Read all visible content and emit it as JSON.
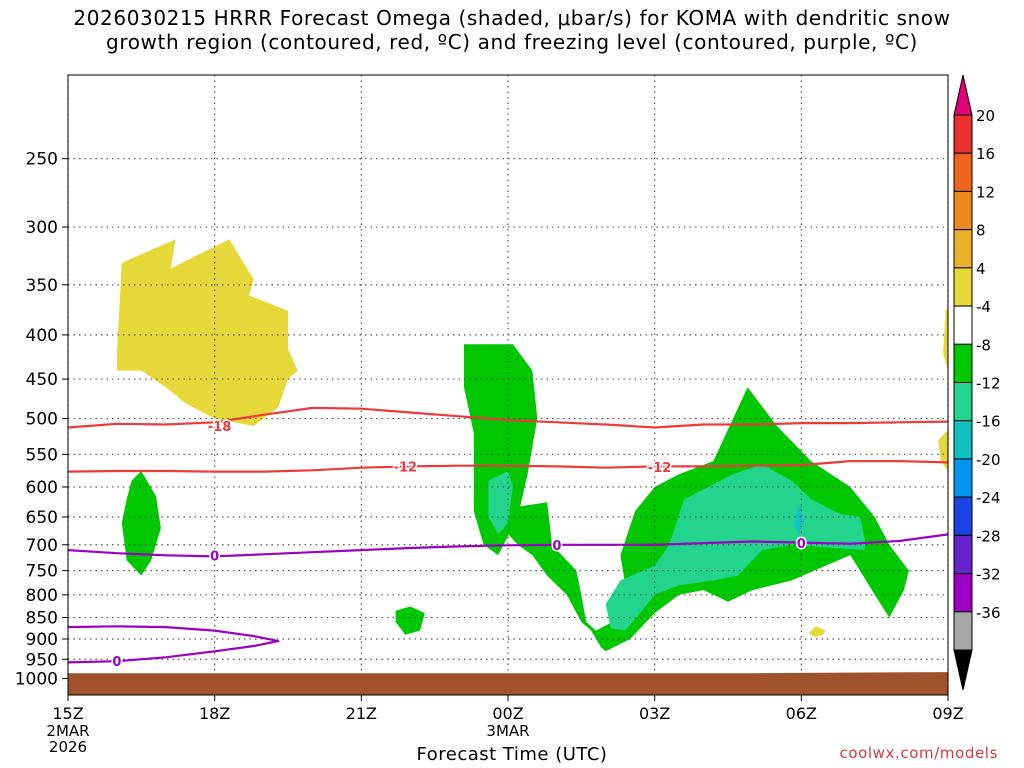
{
  "title_line1": "2026030215 HRRR Forecast Omega (shaded, μbar/s) for KOMA with dendritic snow",
  "title_line2": "growth region (contoured, red, ºC) and freezing level (contoured, purple, ºC)",
  "credit": "coolwx.com/models",
  "chart_data": {
    "type": "contour-time-height",
    "xlabel": "Forecast Time (UTC)",
    "ylabel": "",
    "x_ticks": [
      {
        "hour": 0,
        "label": "15Z",
        "sub1": "2MAR",
        "sub2": "2026"
      },
      {
        "hour": 3,
        "label": "18Z"
      },
      {
        "hour": 6,
        "label": "21Z"
      },
      {
        "hour": 9,
        "label": "00Z",
        "sub1": "3MAR"
      },
      {
        "hour": 12,
        "label": "03Z"
      },
      {
        "hour": 15,
        "label": "06Z"
      },
      {
        "hour": 18,
        "label": "09Z"
      }
    ],
    "y_ticks": [
      {
        "p": 250,
        "label": "250"
      },
      {
        "p": 300,
        "label": "300"
      },
      {
        "p": 350,
        "label": "350"
      },
      {
        "p": 400,
        "label": "400"
      },
      {
        "p": 450,
        "label": "450"
      },
      {
        "p": 500,
        "label": "500"
      },
      {
        "p": 550,
        "label": "550"
      },
      {
        "p": 600,
        "label": "600"
      },
      {
        "p": 650,
        "label": "650"
      },
      {
        "p": 700,
        "label": "700"
      },
      {
        "p": 750,
        "label": "750"
      },
      {
        "p": 800,
        "label": "800"
      },
      {
        "p": 850,
        "label": "850"
      },
      {
        "p": 900,
        "label": "900"
      },
      {
        "p": 950,
        "label": "950"
      },
      {
        "p": 1000,
        "label": "1000"
      }
    ],
    "xlim_hours": [
      0,
      18
    ],
    "ylim_hpa": [
      1045,
      200
    ],
    "grid": true,
    "colorbar": {
      "levels": [
        20,
        16,
        12,
        8,
        4,
        -4,
        -8,
        -12,
        -16,
        -20,
        -24,
        -28,
        -32,
        -36
      ],
      "colors": [
        "#e2007a",
        "#ec3030",
        "#f0651e",
        "#ec8a1e",
        "#e8b028",
        "#e6d838",
        "#ffffff",
        "#00c800",
        "#22d48c",
        "#12c2c2",
        "#0096ee",
        "#1a44e6",
        "#6622cc",
        "#9b00c3",
        "#a8a8a8",
        "#000000"
      ]
    },
    "ground_color": "#a0522d",
    "omega_regions": [
      {
        "value": "4 to 8",
        "color": "#e6d838",
        "points": [
          [
            1.1,
            330
          ],
          [
            2.2,
            310
          ],
          [
            2.1,
            335
          ],
          [
            3.3,
            310
          ],
          [
            3.8,
            345
          ],
          [
            3.7,
            360
          ],
          [
            4.5,
            375
          ],
          [
            4.5,
            415
          ],
          [
            4.7,
            440
          ],
          [
            4.5,
            450
          ],
          [
            4.3,
            485
          ],
          [
            3.8,
            510
          ],
          [
            3.0,
            500
          ],
          [
            2.4,
            480
          ],
          [
            2.0,
            460
          ],
          [
            1.5,
            440
          ],
          [
            1.0,
            440
          ],
          [
            1.0,
            420
          ]
        ]
      },
      {
        "value": "4 to 8",
        "color": "#e6d838",
        "points": [
          [
            17.95,
            375
          ],
          [
            18,
            370
          ],
          [
            18,
            440
          ],
          [
            17.9,
            420
          ]
        ]
      },
      {
        "value": "4 to 8",
        "color": "#e6d838",
        "points": [
          [
            18,
            515
          ],
          [
            17.8,
            530
          ],
          [
            17.85,
            560
          ],
          [
            18,
            575
          ]
        ]
      },
      {
        "value": "4 to 8",
        "color": "#e6d838",
        "points": [
          [
            15.3,
            870
          ],
          [
            15.5,
            880
          ],
          [
            15.45,
            890
          ],
          [
            15.25,
            895
          ],
          [
            15.15,
            885
          ]
        ]
      },
      {
        "value": "-4 to -8",
        "color": "#00c800",
        "points": [
          [
            1.3,
            590
          ],
          [
            1.5,
            575
          ],
          [
            1.8,
            615
          ],
          [
            1.9,
            670
          ],
          [
            1.7,
            730
          ],
          [
            1.5,
            760
          ],
          [
            1.2,
            730
          ],
          [
            1.1,
            660
          ],
          [
            1.2,
            620
          ]
        ]
      },
      {
        "value": "-4 to -8",
        "color": "#00c800",
        "points": [
          [
            6.7,
            835
          ],
          [
            7.0,
            825
          ],
          [
            7.3,
            840
          ],
          [
            7.2,
            880
          ],
          [
            6.9,
            890
          ],
          [
            6.7,
            860
          ]
        ]
      },
      {
        "value": "-4 to -8",
        "color": "#00c800",
        "points": [
          [
            8.1,
            405
          ],
          [
            8.1,
            410
          ],
          [
            9.1,
            410
          ],
          [
            9.5,
            440
          ],
          [
            9.6,
            500
          ],
          [
            9.4,
            580
          ],
          [
            9.2,
            650
          ],
          [
            8.8,
            720
          ],
          [
            8.5,
            700
          ],
          [
            8.3,
            640
          ],
          [
            8.3,
            520
          ],
          [
            8.1,
            460
          ]
        ]
      },
      {
        "value": "-4 to -8",
        "color": "#00c800",
        "points": [
          [
            8.3,
            500
          ],
          [
            8.6,
            510
          ],
          [
            8.6,
            520
          ],
          [
            8.3,
            520
          ]
        ]
      },
      {
        "value": "-4 to -8",
        "color": "#00c800",
        "points": [
          [
            9.0,
            635
          ],
          [
            9.8,
            625
          ],
          [
            9.85,
            660
          ],
          [
            9.9,
            700
          ],
          [
            10.4,
            750
          ],
          [
            10.5,
            800
          ],
          [
            10.6,
            860
          ],
          [
            10.8,
            880
          ],
          [
            11.3,
            850
          ],
          [
            11.4,
            780
          ],
          [
            11.3,
            720
          ],
          [
            11.6,
            640
          ],
          [
            12.0,
            600
          ],
          [
            12.5,
            580
          ],
          [
            13.2,
            560
          ],
          [
            13.9,
            460
          ],
          [
            14.5,
            510
          ],
          [
            15.2,
            560
          ],
          [
            16.0,
            600
          ],
          [
            16.5,
            650
          ],
          [
            16.8,
            700
          ],
          [
            17.2,
            750
          ],
          [
            17.1,
            790
          ],
          [
            16.8,
            850
          ],
          [
            16.5,
            800
          ],
          [
            16.2,
            750
          ],
          [
            16.0,
            720
          ],
          [
            15.5,
            740
          ],
          [
            14.8,
            770
          ],
          [
            14.0,
            790
          ],
          [
            13.5,
            815
          ],
          [
            13.0,
            790
          ],
          [
            12.5,
            800
          ],
          [
            12.0,
            840
          ],
          [
            11.5,
            900
          ],
          [
            11.0,
            930
          ],
          [
            10.9,
            920
          ],
          [
            10.7,
            880
          ],
          [
            10.5,
            860
          ],
          [
            10.2,
            800
          ],
          [
            9.8,
            760
          ],
          [
            9.5,
            720
          ],
          [
            9.2,
            700
          ],
          [
            9.0,
            680
          ]
        ]
      },
      {
        "value": "-8 to -12",
        "color": "#22d48c",
        "points": [
          [
            8.6,
            590
          ],
          [
            9.0,
            575
          ],
          [
            9.1,
            600
          ],
          [
            9.0,
            660
          ],
          [
            8.8,
            680
          ],
          [
            8.6,
            650
          ]
        ]
      },
      {
        "value": "-8 to -12",
        "color": "#22d48c",
        "points": [
          [
            12.6,
            620
          ],
          [
            13.1,
            600
          ],
          [
            13.6,
            580
          ],
          [
            14.2,
            565
          ],
          [
            14.8,
            590
          ],
          [
            15.2,
            620
          ],
          [
            15.8,
            645
          ],
          [
            16.2,
            650
          ],
          [
            16.3,
            690
          ],
          [
            16.3,
            710
          ],
          [
            15.5,
            705
          ],
          [
            14.8,
            700
          ],
          [
            14.2,
            710
          ],
          [
            13.7,
            760
          ],
          [
            13.2,
            770
          ],
          [
            12.5,
            780
          ],
          [
            12.0,
            800
          ],
          [
            11.7,
            840
          ],
          [
            11.4,
            880
          ],
          [
            11.1,
            875
          ],
          [
            11.0,
            820
          ],
          [
            11.3,
            770
          ],
          [
            12.0,
            740
          ],
          [
            12.3,
            700
          ]
        ]
      },
      {
        "value": "-12 to -16",
        "color": "#12c2c2",
        "points": [
          [
            14.9,
            640
          ],
          [
            15.0,
            630
          ],
          [
            15.05,
            660
          ],
          [
            14.95,
            680
          ],
          [
            14.85,
            665
          ]
        ]
      }
    ],
    "contours": [
      {
        "name": "-18",
        "color": "#ec3a3a",
        "x": [
          0,
          1,
          2,
          3,
          4,
          5,
          6,
          7,
          8,
          9,
          10,
          11,
          12,
          13,
          14,
          15,
          16,
          17,
          18
        ],
        "y": [
          512,
          507,
          508,
          505,
          495,
          486,
          487,
          492,
          497,
          502,
          505,
          508,
          512,
          508,
          508,
          506,
          506,
          505,
          504
        ]
      },
      {
        "name": "-12",
        "color": "#ec3a3a",
        "x": [
          0,
          1,
          2,
          3,
          4,
          5,
          6,
          7,
          8,
          9,
          10,
          11,
          12,
          13,
          14,
          15,
          16,
          17,
          18
        ],
        "y": [
          576,
          575,
          575,
          576,
          576,
          574,
          570,
          568,
          567,
          567,
          568,
          570,
          568,
          568,
          567,
          566,
          560,
          560,
          562
        ]
      },
      {
        "name": "0",
        "color": "#9b00c3",
        "x": [
          0,
          1,
          2,
          3,
          4,
          5,
          6,
          7,
          8,
          9,
          10,
          11,
          12,
          13,
          14,
          15,
          16,
          17,
          18
        ],
        "y": [
          710,
          716,
          720,
          722,
          718,
          714,
          710,
          706,
          703,
          701,
          700,
          700,
          700,
          697,
          694,
          696,
          698,
          693,
          681
        ]
      },
      {
        "name": "0",
        "color": "#9b00c3",
        "x": [
          0,
          1,
          2,
          3,
          3.8,
          4.3,
          3.8,
          3,
          2,
          1,
          0
        ],
        "y": [
          872,
          870,
          872,
          880,
          893,
          905,
          917,
          930,
          945,
          955,
          958
        ]
      }
    ],
    "contour_labels": [
      {
        "text": "-18",
        "hour": 3.1,
        "p": 510,
        "color": "#ec3a3a"
      },
      {
        "text": "-12",
        "hour": 6.9,
        "p": 568,
        "color": "#ec3a3a"
      },
      {
        "text": "-12",
        "hour": 12.1,
        "p": 569,
        "color": "#ec3a3a"
      },
      {
        "text": "0",
        "hour": 3.0,
        "p": 720,
        "color": "#9b00c3"
      },
      {
        "text": "0",
        "hour": 10.0,
        "p": 700,
        "color": "#9b00c3"
      },
      {
        "text": "0",
        "hour": 15.0,
        "p": 697,
        "color": "#9b00c3"
      },
      {
        "text": "0",
        "hour": 1.0,
        "p": 955,
        "color": "#9b00c3"
      }
    ]
  }
}
